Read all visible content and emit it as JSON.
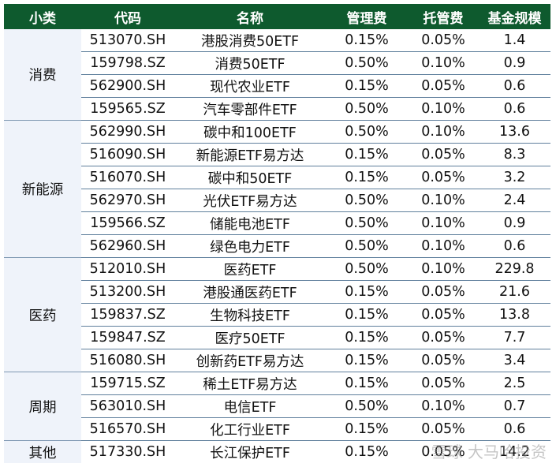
{
  "headers": [
    "小类",
    "代码",
    "名称",
    "管理费",
    "托管费",
    "基金规模"
  ],
  "groups": [
    {
      "name": "消费",
      "rows": [
        {
          "code": "513070.SH",
          "name": "港股消费50ETF",
          "mgmt_fee": "0.15%",
          "custody_fee": "0.05%",
          "size": "1.4"
        },
        {
          "code": "159798.SZ",
          "name": "消费50ETF",
          "mgmt_fee": "0.50%",
          "custody_fee": "0.10%",
          "size": "0.9"
        },
        {
          "code": "562900.SH",
          "name": "现代农业ETF",
          "mgmt_fee": "0.15%",
          "custody_fee": "0.05%",
          "size": "0.6"
        },
        {
          "code": "159565.SZ",
          "name": "汽车零部件ETF",
          "mgmt_fee": "0.50%",
          "custody_fee": "0.10%",
          "size": "0.6"
        }
      ]
    },
    {
      "name": "新能源",
      "rows": [
        {
          "code": "562990.SH",
          "name": "碳中和100ETF",
          "mgmt_fee": "0.50%",
          "custody_fee": "0.10%",
          "size": "13.6"
        },
        {
          "code": "516090.SH",
          "name": "新能源ETF易方达",
          "mgmt_fee": "0.15%",
          "custody_fee": "0.05%",
          "size": "8.3"
        },
        {
          "code": "516070.SH",
          "name": "碳中和50ETF",
          "mgmt_fee": "0.15%",
          "custody_fee": "0.05%",
          "size": "3.2"
        },
        {
          "code": "562970.SH",
          "name": "光伏ETF易方达",
          "mgmt_fee": "0.50%",
          "custody_fee": "0.10%",
          "size": "2.4"
        },
        {
          "code": "159566.SZ",
          "name": "储能电池ETF",
          "mgmt_fee": "0.50%",
          "custody_fee": "0.10%",
          "size": "0.9"
        },
        {
          "code": "562960.SH",
          "name": "绿色电力ETF",
          "mgmt_fee": "0.50%",
          "custody_fee": "0.10%",
          "size": "0.6"
        }
      ]
    },
    {
      "name": "医药",
      "rows": [
        {
          "code": "512010.SH",
          "name": "医药ETF",
          "mgmt_fee": "0.50%",
          "custody_fee": "0.10%",
          "size": "229.8"
        },
        {
          "code": "513200.SH",
          "name": "港股通医药ETF",
          "mgmt_fee": "0.15%",
          "custody_fee": "0.05%",
          "size": "21.6"
        },
        {
          "code": "159837.SZ",
          "name": "生物科技ETF",
          "mgmt_fee": "0.15%",
          "custody_fee": "0.05%",
          "size": "13.8"
        },
        {
          "code": "159847.SZ",
          "name": "医疗50ETF",
          "mgmt_fee": "0.15%",
          "custody_fee": "0.05%",
          "size": "7.7"
        },
        {
          "code": "516080.SH",
          "name": "创新药ETF易方达",
          "mgmt_fee": "0.15%",
          "custody_fee": "0.05%",
          "size": "3.4"
        }
      ]
    },
    {
      "name": "周期",
      "rows": [
        {
          "code": "159715.SZ",
          "name": "稀土ETF易方达",
          "mgmt_fee": "0.15%",
          "custody_fee": "0.05%",
          "size": "2.5"
        },
        {
          "code": "563010.SH",
          "name": "电信ETF",
          "mgmt_fee": "0.50%",
          "custody_fee": "0.10%",
          "size": "0.7"
        },
        {
          "code": "516570.SH",
          "name": "化工行业ETF",
          "mgmt_fee": "0.15%",
          "custody_fee": "0.05%",
          "size": "0.6"
        }
      ]
    },
    {
      "name": "其他",
      "rows": [
        {
          "code": "517330.SH",
          "name": "长江保护ETF",
          "mgmt_fee": "0.15%",
          "custody_fee": "0.05%",
          "size": "14.2"
        }
      ]
    }
  ],
  "watermark": "雪球 大马哈投资",
  "colors": {
    "header_bg": "#0e5a2e",
    "header_text": "#ffffff",
    "group_bg": "#eff3fa",
    "row_border": "#5f7f9c"
  }
}
